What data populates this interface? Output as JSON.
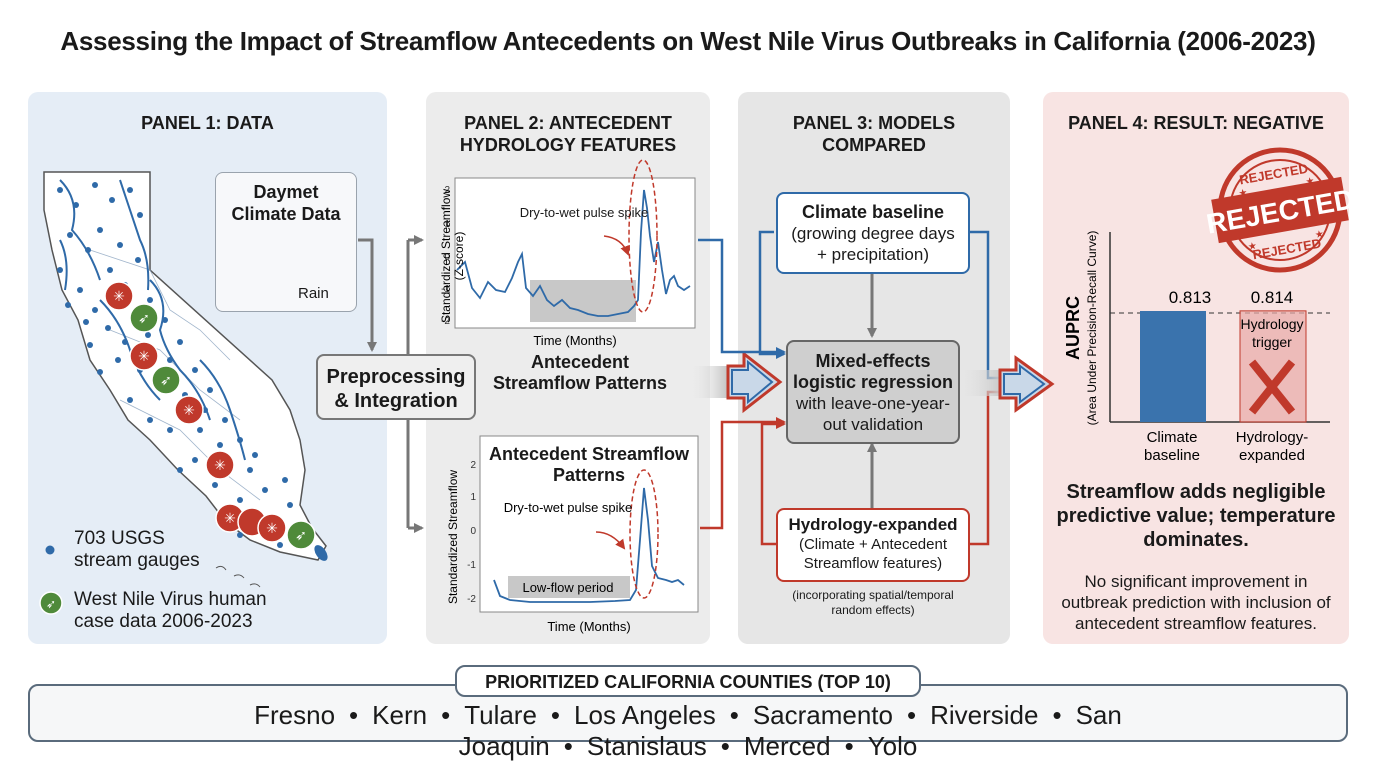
{
  "title": "Assessing the Impact of Streamflow Antecedents on West Nile Virus Outbreaks in California (2006-2023)",
  "panel1": {
    "title": "PANEL 1: DATA",
    "daymet_title": "Daymet Climate Data",
    "rain_label": "Rain",
    "legend_gauges": "703 USGS stream gauges",
    "legend_wnv": "West Nile Virus human case data 2006-2023"
  },
  "preprocessing_label": "Preprocessing & Integration",
  "panel2": {
    "title": "PANEL 2: ANTECEDENT HYDROLOGY FEATURES",
    "chart1": {
      "ylabel_line1": "Standardized Streamflow",
      "ylabel_line2": "(Z-score)",
      "xlabel": "Time (Months)",
      "annotation": "Dry-to-wet pulse spike",
      "caption": "Antecedent Streamflow Patterns",
      "yticks": [
        "2",
        "1",
        "0",
        "-1",
        "-2"
      ]
    },
    "chart2": {
      "ylabel": "Standardized Streamflow",
      "xlabel": "Time (Months)",
      "title": "Antecedent Streamflow Patterns",
      "annotation": "Dry-to-wet pulse spike",
      "lowflow_label": "Low-flow period",
      "yticks": [
        "2",
        "1",
        "0",
        "-1",
        "-2"
      ]
    }
  },
  "panel3": {
    "title": "PANEL 3: MODELS COMPARED",
    "climate_title": "Climate baseline",
    "climate_desc": "(growing degree days + precipitation)",
    "mixed_title": "Mixed-effects logistic regression",
    "mixed_desc": "with leave-one-year-out validation",
    "hydro_title": "Hydrology-expanded",
    "hydro_desc": "(Climate + Antecedent Streamflow features)",
    "hydro_note": "(incorporating spatial/temporal random effects)"
  },
  "panel4": {
    "title": "PANEL 4: RESULT: NEGATIVE",
    "stamp_text": "REJECTED",
    "ylabel_main": "AUPRC",
    "ylabel_sub": "(Area Under Precision-Recall Curve)",
    "hydro_trigger": "Hydrology trigger",
    "conclusion": "Streamflow adds negligible predictive value; temperature dominates.",
    "detail": "No significant improvement in outbreak prediction with inclusion of antecedent streamflow features."
  },
  "auprc_chart_data": {
    "type": "bar",
    "categories": [
      "Climate baseline",
      "Hydrology-expanded"
    ],
    "values": [
      0.813,
      0.814
    ],
    "value_labels": [
      "0.813",
      "0.814"
    ],
    "colors": [
      "#3a73ad",
      "#e8a9a6"
    ]
  },
  "counties": {
    "title": "PRIORITIZED CALIFORNIA COUNTIES (TOP 10)",
    "items": [
      "Fresno",
      "Kern",
      "Tulare",
      "Los Angeles",
      "Sacramento",
      "Riverside",
      "San Joaquin",
      "Stanislaus",
      "Merced",
      "Yolo"
    ]
  },
  "colors": {
    "blue": "#2f6aa8",
    "red": "#c0392b",
    "green": "#4f8a3a"
  }
}
